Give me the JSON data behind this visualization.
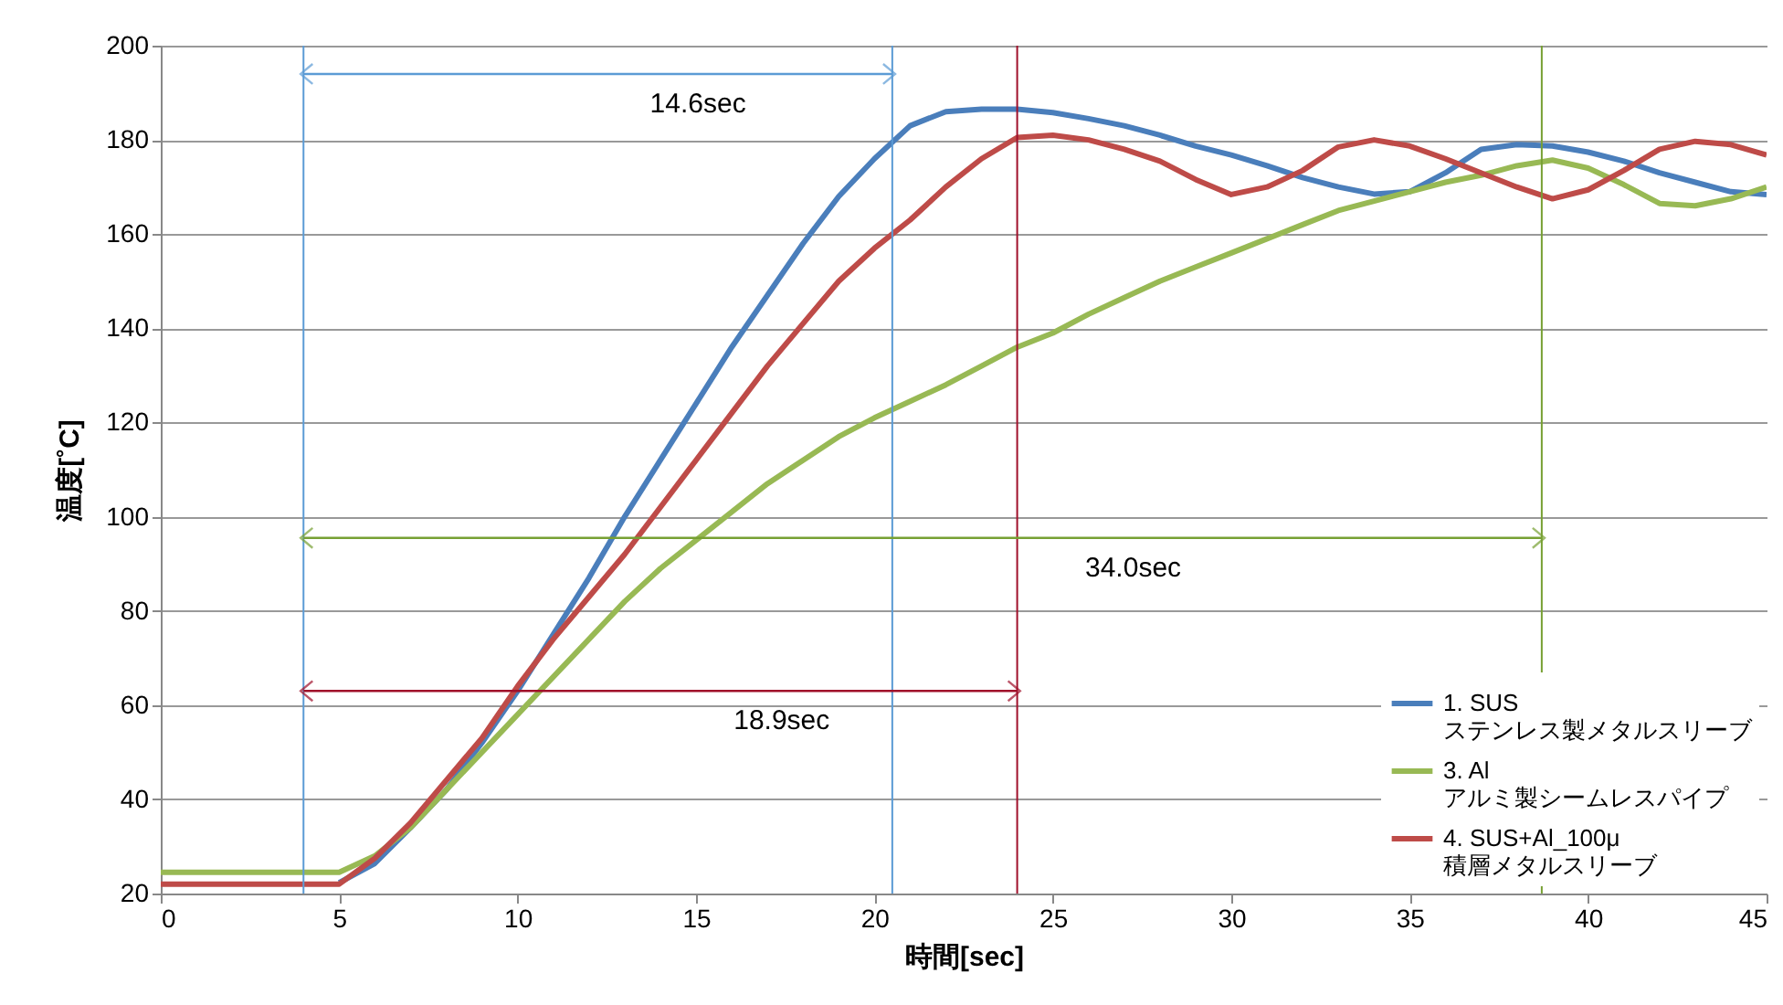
{
  "chart_data": {
    "type": "line",
    "xlabel": "時間[sec]",
    "ylabel": "温度[˚C]",
    "x": [
      0,
      1,
      2,
      3,
      4,
      5,
      6,
      7,
      8,
      9,
      10,
      11,
      12,
      13,
      14,
      15,
      16,
      17,
      18,
      19,
      20,
      21,
      22,
      23,
      24,
      25,
      26,
      27,
      28,
      29,
      30,
      31,
      32,
      33,
      34,
      35,
      36,
      37,
      38,
      39,
      40,
      41,
      42,
      43,
      44,
      45
    ],
    "series": [
      {
        "name": "1. SUS\nステンレス製メタルスリーブ",
        "color": "#4a7ebb",
        "values": [
          null,
          null,
          null,
          null,
          null,
          22.3,
          26.4,
          34,
          42,
          52,
          63,
          75,
          87,
          100,
          112,
          124,
          136,
          147,
          158,
          168,
          176,
          183,
          186,
          186.5,
          186.5,
          185.8,
          184.5,
          183,
          181,
          178.7,
          176.8,
          174.5,
          172,
          170,
          168.5,
          169,
          173,
          178,
          179,
          178.7,
          177.4,
          175.5,
          173,
          171,
          169,
          168.4
        ]
      },
      {
        "name": "3. Al\nアルミ製シームレスパイプ",
        "color": "#98b954",
        "values": [
          24.5,
          24.5,
          24.5,
          24.5,
          24.5,
          24.5,
          28,
          34,
          42,
          50,
          58,
          66,
          74,
          82,
          89,
          95,
          101,
          107,
          112,
          117,
          121,
          124.5,
          128,
          132,
          136,
          139,
          143,
          146.5,
          150,
          153,
          156,
          159,
          162,
          165,
          167,
          169,
          171,
          172.5,
          174.5,
          175.7,
          174,
          170.5,
          166.5,
          166,
          167.5,
          170
        ]
      },
      {
        "name": "4. SUS+Al_100μ\n積層メタルスリーブ",
        "color": "#be4b48",
        "values": [
          22,
          22,
          22,
          22,
          22,
          22,
          27.5,
          35,
          44,
          53,
          64,
          74,
          83,
          92,
          102,
          112,
          122,
          132,
          141,
          150,
          157,
          163,
          170,
          176,
          180.5,
          181,
          180,
          178,
          175.5,
          171.6,
          168.4,
          170,
          173.5,
          178.5,
          180,
          178.7,
          176,
          173,
          170,
          167.5,
          169.4,
          173.5,
          178,
          179.7,
          179,
          176.8
        ]
      },
      {
        "type": "line",
        "color": "#5b9bd5",
        "marker": "cross",
        "x": [
          4,
          20.5
        ],
        "values": [
          194,
          194
        ]
      },
      {
        "type": "line",
        "color": "#a0102a",
        "marker": "cross",
        "x": [
          4,
          24
        ],
        "values": [
          63,
          63
        ]
      },
      {
        "type": "line",
        "color": "#77a033",
        "marker": "cross",
        "x": [
          4,
          38.7
        ],
        "values": [
          95.5,
          95.5
        ]
      }
    ],
    "xlim": [
      0,
      45
    ],
    "xticks": [
      0,
      5,
      10,
      15,
      20,
      25,
      30,
      35,
      40,
      45
    ],
    "ylim": [
      20,
      200
    ],
    "yticks": [
      20,
      40,
      60,
      80,
      100,
      120,
      140,
      160,
      180,
      200
    ],
    "grid": "y",
    "legend": "bottom right",
    "ref_lines": [
      {
        "axis": "x",
        "value": 4,
        "color": "#5b9bd5"
      },
      {
        "axis": "x",
        "value": 20.5,
        "color": "#5b9bd5"
      },
      {
        "axis": "x",
        "value": 24,
        "color": "#a0102a"
      },
      {
        "axis": "x",
        "value": 38.7,
        "color": "#77a033"
      }
    ],
    "annotations": [
      "14.6sec",
      "18.9sec",
      "34.0sec"
    ]
  }
}
